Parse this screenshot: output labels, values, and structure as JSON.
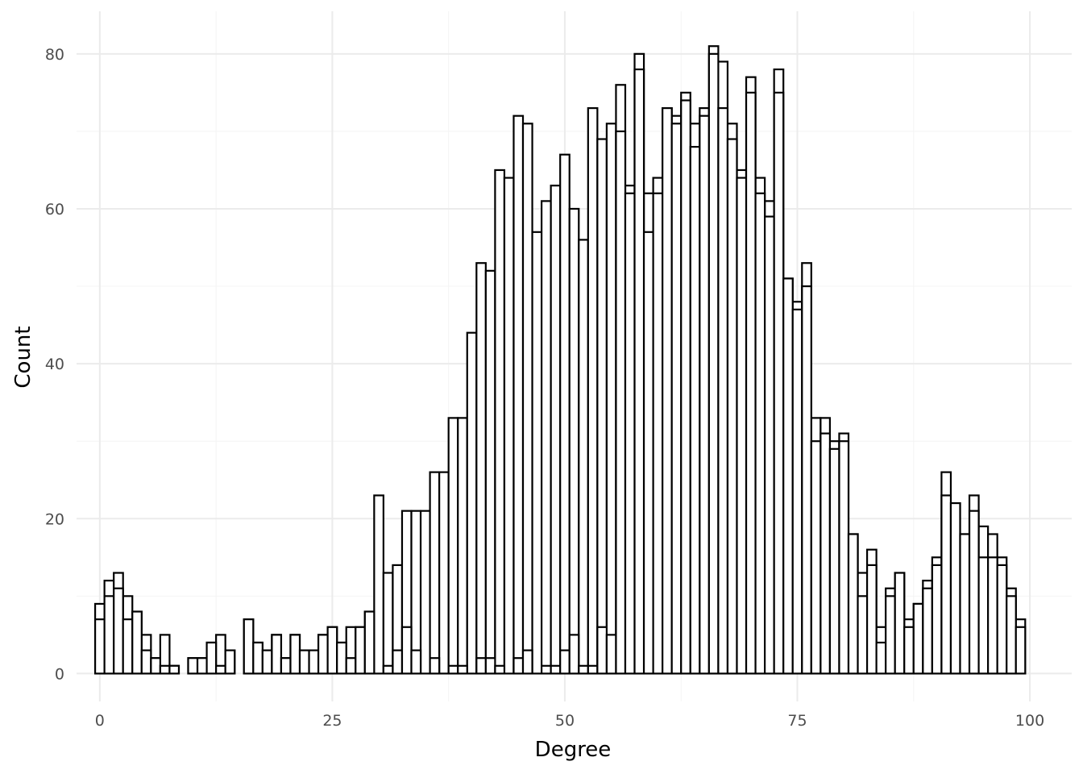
{
  "chart_data": {
    "type": "bar",
    "xlabel": "Degree",
    "ylabel": "Count",
    "xlim": [
      -2.5,
      104.5
    ],
    "ylim": [
      -3.6,
      85.5
    ],
    "x_ticks": [
      0,
      25,
      50,
      75,
      100
    ],
    "y_ticks": [
      0,
      20,
      40,
      60,
      80
    ],
    "grid": true,
    "legend": "none",
    "bar_fill": "#ffffff",
    "bar_outline": "#000000",
    "bin_width": 1,
    "series": [
      {
        "x": [
          0,
          1,
          2,
          3,
          4,
          5,
          6,
          7,
          8,
          9,
          10,
          11,
          12,
          13,
          14,
          15,
          16,
          17,
          18,
          19,
          20,
          21,
          22,
          23,
          24,
          25,
          26,
          27,
          28,
          29,
          30,
          31,
          32,
          33,
          34,
          35,
          36,
          37,
          38,
          39,
          40,
          41,
          42,
          43,
          44,
          45,
          46,
          47,
          48,
          49,
          50,
          51,
          52,
          53,
          54,
          55,
          56,
          57,
          58,
          59,
          60,
          61,
          62,
          63,
          64,
          65,
          66,
          67,
          68,
          69,
          70,
          71,
          72,
          73,
          74,
          75,
          76,
          77,
          78,
          79,
          80,
          81,
          82,
          83,
          84,
          85,
          86,
          87,
          88,
          89,
          90,
          91,
          92,
          93,
          94,
          95,
          96,
          97,
          98,
          99
        ],
        "values": [
          9,
          12,
          13,
          10,
          8,
          5,
          2,
          5,
          1,
          0,
          2,
          2,
          4,
          5,
          3,
          0,
          7,
          4,
          3,
          5,
          2,
          5,
          3,
          3,
          5,
          6,
          4,
          6,
          6,
          8,
          23,
          13,
          14,
          21,
          21,
          21,
          26,
          26,
          33,
          33,
          44,
          53,
          52,
          65,
          64,
          72,
          71,
          57,
          61,
          63,
          67,
          60,
          56,
          73,
          69,
          71,
          76,
          63,
          80,
          62,
          64,
          73,
          72,
          75,
          71,
          73,
          81,
          79,
          71,
          65,
          77,
          64,
          61,
          78,
          51,
          48,
          53,
          33,
          33,
          30,
          31,
          18,
          13,
          16,
          6,
          11,
          13,
          7,
          9,
          12,
          15,
          26,
          22,
          18,
          23,
          19,
          18,
          15,
          11,
          7
        ]
      },
      {
        "x": [
          0,
          1,
          2,
          3,
          4,
          5,
          6,
          7,
          8,
          9,
          10,
          11,
          12,
          13,
          14,
          15,
          16,
          17,
          18,
          19,
          20,
          21,
          22,
          23,
          24,
          25,
          26,
          27,
          28,
          29,
          30,
          31,
          32,
          33,
          34,
          35,
          36,
          37,
          38,
          39,
          40,
          41,
          42,
          43,
          44,
          45,
          46,
          47,
          48,
          49,
          50,
          51,
          52,
          53,
          54,
          55,
          56,
          57,
          58,
          59,
          60,
          61,
          62,
          63,
          64,
          65,
          66,
          67,
          68,
          69,
          70,
          71,
          72,
          73,
          74,
          75,
          76,
          77,
          78,
          79,
          80,
          81,
          82,
          83,
          84,
          85,
          86,
          87,
          88,
          89,
          90,
          91,
          92,
          93,
          94,
          95,
          96,
          97,
          98,
          99
        ],
        "values": [
          7,
          10,
          11,
          7,
          8,
          3,
          2,
          1,
          1,
          0,
          2,
          2,
          4,
          1,
          3,
          0,
          7,
          4,
          3,
          5,
          2,
          5,
          3,
          3,
          5,
          6,
          4,
          2,
          6,
          8,
          0,
          1,
          3,
          6,
          3,
          0,
          2,
          0,
          1,
          1,
          0,
          2,
          2,
          1,
          0,
          2,
          3,
          0,
          1,
          1,
          3,
          5,
          1,
          1,
          6,
          5,
          70,
          62,
          78,
          57,
          62,
          73,
          71,
          74,
          68,
          72,
          80,
          73,
          69,
          64,
          75,
          62,
          59,
          75,
          51,
          47,
          50,
          30,
          31,
          29,
          30,
          18,
          10,
          14,
          4,
          10,
          13,
          6,
          9,
          11,
          14,
          23,
          22,
          18,
          21,
          15,
          15,
          14,
          10,
          6
        ]
      }
    ]
  }
}
